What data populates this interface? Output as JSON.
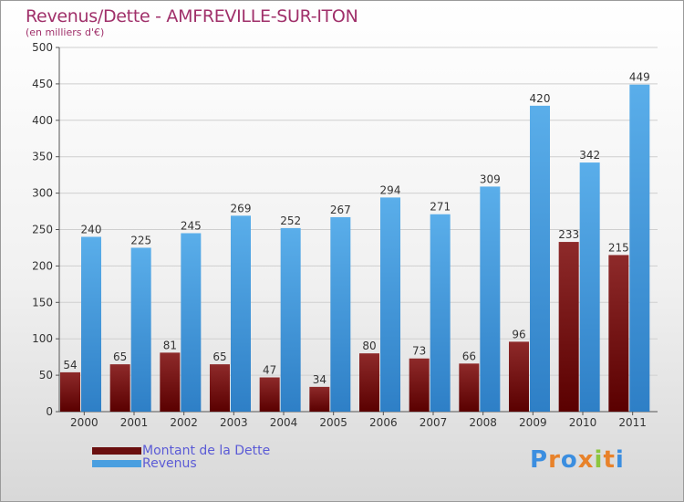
{
  "title": "Revenus/Dette - AMFREVILLE-SUR-ITON",
  "subtitle": "(en milliers d'€)",
  "legend": {
    "items": [
      {
        "label": "Montant de la Dette",
        "color": "#7a1818"
      },
      {
        "label": "Revenus",
        "color": "#4a9fe0"
      }
    ]
  },
  "logo": {
    "text": "Proxiti",
    "colors": [
      "#3b8ee0",
      "#e8822a",
      "#3b8ee0",
      "#e8822a",
      "#8cc63f",
      "#e8822a",
      "#3b8ee0"
    ]
  },
  "chart_data": {
    "type": "bar",
    "categories": [
      "2000",
      "2001",
      "2002",
      "2003",
      "2004",
      "2005",
      "2006",
      "2007",
      "2008",
      "2009",
      "2010",
      "2011"
    ],
    "series": [
      {
        "name": "Montant de la Dette",
        "color": "#7a1818",
        "values": [
          54,
          65,
          81,
          65,
          47,
          34,
          80,
          73,
          66,
          96,
          233,
          215
        ]
      },
      {
        "name": "Revenus",
        "color": "#4a9fe0",
        "values": [
          240,
          225,
          245,
          269,
          252,
          267,
          294,
          271,
          309,
          420,
          342,
          449
        ]
      }
    ],
    "title": "Revenus/Dette - AMFREVILLE-SUR-ITON",
    "ylabel": "(en milliers d'€)",
    "ylim": [
      0,
      500
    ],
    "yticks": [
      0,
      50,
      100,
      150,
      200,
      250,
      300,
      350,
      400,
      450,
      500
    ],
    "grid": true,
    "data_labels": true,
    "legend_position": "bottom-left"
  }
}
